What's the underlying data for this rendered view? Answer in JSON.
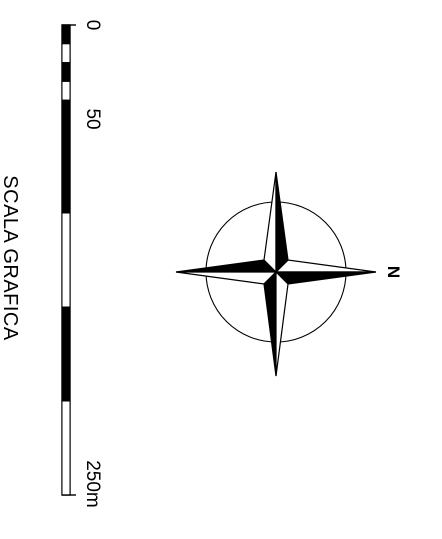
{
  "scale_bar": {
    "title": "SCALA GRAFICA",
    "unit": "m",
    "ticks": [
      {
        "value": 0,
        "label": "0"
      },
      {
        "value": 50,
        "label": "50"
      },
      {
        "value": 250,
        "label": "250m"
      }
    ],
    "max_value": 250,
    "fine_subdivision_end": 50,
    "fine_segment_count": 5,
    "coarse_segment_count": 4
  },
  "compass": {
    "north_label": "N",
    "north_direction": "right",
    "colors": {
      "ink": "#000000",
      "paper": "#ffffff"
    }
  }
}
